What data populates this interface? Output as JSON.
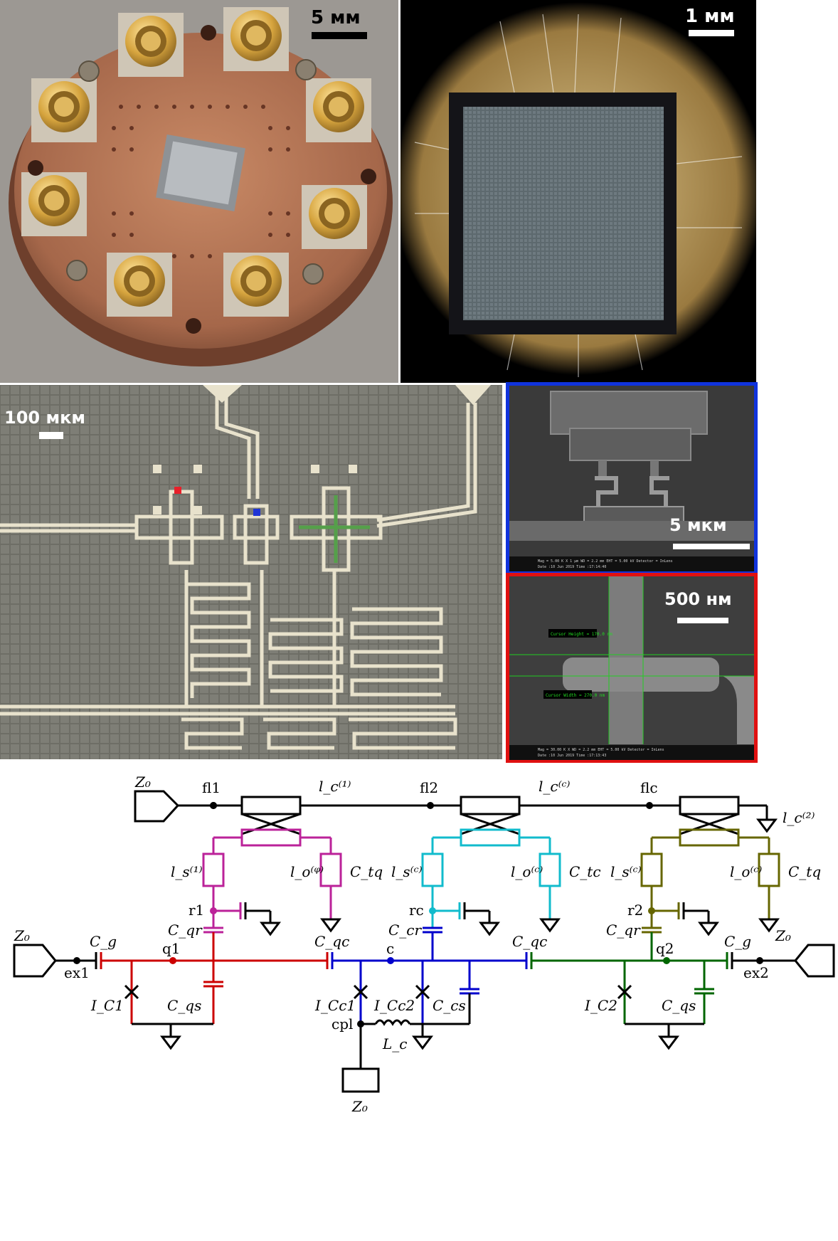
{
  "panels": {
    "holder": {
      "scale_label": "5 мм",
      "colors": {
        "copper": "#b8785a",
        "brass": "#d8a94a",
        "background": "#9a9590"
      }
    },
    "microscope": {
      "scale_label": "1 мм",
      "colors": {
        "chip": "#5f6b70",
        "ring": "#111111",
        "gold": "#d6b56c"
      }
    },
    "layout": {
      "scale_label": "100 мкм",
      "markers": {
        "red": "#e8202a",
        "blue": "#1f35d6",
        "green": "#55a04a"
      }
    },
    "sem_blue": {
      "scale_label": "5 мкм",
      "border_color": "#1033dd",
      "info_line1": "Mag = 5.00 K X    1 µm    WD = 2.2 mm    EHT = 5.00 kV    Detector = InLens",
      "info_line2": "Date :10 Jun 2019  Time :17:14:40"
    },
    "sem_red": {
      "scale_label": "500 нм",
      "border_color": "#e01010",
      "measure_height": "Cursor Height = 170.0 nm",
      "measure_width": "Cursor Width = 270.0 nm",
      "info_line1": "Mag = 30.00 K X    WD = 2.2 mm    EHT = 5.00 kV    Detector = InLens",
      "info_line2": "Date :10 Jun 2019  Time :17:13:43"
    }
  },
  "circuit": {
    "colors": {
      "black": "#000000",
      "left_qubit": "#cc0000",
      "center_coupler": "#0000cc",
      "right_qubit": "#006600",
      "left_resonator": "#bb2299",
      "center_resonator": "#11bbcc",
      "right_resonator": "#666600"
    },
    "nodes": {
      "fl1": "fl1",
      "fl2": "fl2",
      "flc": "flc",
      "r1": "r1",
      "rc": "rc",
      "r2": "r2",
      "q1": "q1",
      "c": "c",
      "q2": "q2",
      "ex1": "ex1",
      "ex2": "ex2",
      "cpl": "cpl"
    },
    "labels": {
      "Z0": "Z₀",
      "lc1": "l_c⁽¹⁾",
      "lcc": "l_c⁽ᶜ⁾",
      "lc2": "l_c⁽²⁾",
      "ls1": "l_s⁽¹⁾",
      "lsc_mid": "l_s⁽ᶜ⁾",
      "lsc_right": "l_s⁽ᶜ⁾",
      "loq": "l_o⁽ᵠ⁾",
      "loc_mid": "l_o⁽ᶜ⁾",
      "loc_right": "l_o⁽ᶜ⁾",
      "Ctq": "C_tq",
      "Ctc": "C_tc",
      "Cqr": "C_qr",
      "Ccr": "C_cr",
      "Cg": "C_g",
      "Cqc": "C_qc",
      "Cqs": "C_qs",
      "Ccs": "C_cs",
      "IC1": "I_C1",
      "IC2": "I_C2",
      "ICc1": "I_Cc1",
      "ICc2": "I_Cc2",
      "Lc": "L_c"
    }
  }
}
